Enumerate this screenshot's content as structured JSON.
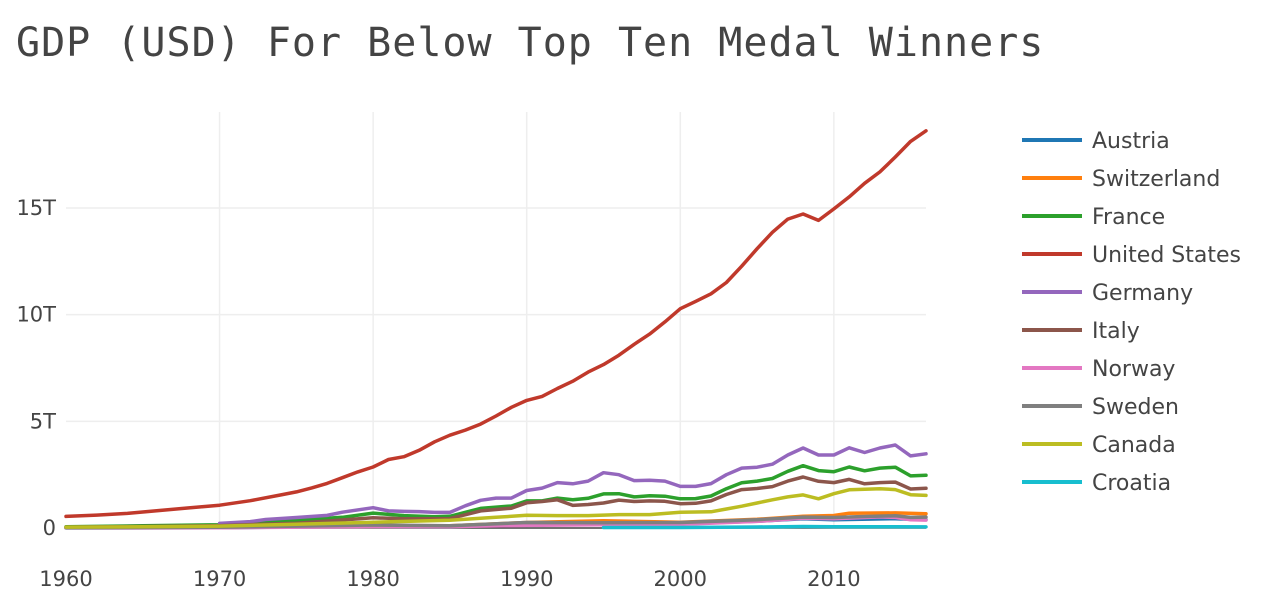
{
  "chart_data": {
    "type": "line",
    "title": "GDP (USD) For Below Top Ten Medal Winners",
    "xlim": [
      1960,
      2016
    ],
    "ylim": [
      0,
      19500000000000.0
    ],
    "x_ticks": [
      {
        "value": 1960,
        "label": "1960"
      },
      {
        "value": 1970,
        "label": "1970"
      },
      {
        "value": 1980,
        "label": "1980"
      },
      {
        "value": 1990,
        "label": "1990"
      },
      {
        "value": 2000,
        "label": "2000"
      },
      {
        "value": 2010,
        "label": "2010"
      }
    ],
    "y_ticks": [
      {
        "value": 0,
        "label": "0"
      },
      {
        "value": 5000000000000.0,
        "label": "5T"
      },
      {
        "value": 10000000000000.0,
        "label": "10T"
      },
      {
        "value": 15000000000000.0,
        "label": "15T"
      }
    ],
    "grid": true,
    "legend_position": "right",
    "series": [
      {
        "name": "Austria",
        "color": "#1f77b4",
        "points": [
          [
            1960,
            6600000000.0
          ],
          [
            1970,
            15000000000.0
          ],
          [
            1980,
            82000000000.0
          ],
          [
            1985,
            69000000000.0
          ],
          [
            1990,
            166000000000.0
          ],
          [
            1995,
            240000000000.0
          ],
          [
            2000,
            197000000000.0
          ],
          [
            2005,
            315000000000.0
          ],
          [
            2008,
            430000000000.0
          ],
          [
            2010,
            390000000000.0
          ],
          [
            2014,
            438000000000.0
          ],
          [
            2016,
            390000000000.0
          ]
        ]
      },
      {
        "name": "Switzerland",
        "color": "#ff7f0e",
        "points": [
          [
            1960,
            9500000000.0
          ],
          [
            1970,
            21000000000.0
          ],
          [
            1980,
            118000000000.0
          ],
          [
            1985,
            109000000000.0
          ],
          [
            1990,
            260000000000.0
          ],
          [
            1995,
            340000000000.0
          ],
          [
            2000,
            272000000000.0
          ],
          [
            2005,
            408000000000.0
          ],
          [
            2008,
            554000000000.0
          ],
          [
            2010,
            584000000000.0
          ],
          [
            2011,
            696000000000.0
          ],
          [
            2014,
            709000000000.0
          ],
          [
            2016,
            670000000000.0
          ]
        ]
      },
      {
        "name": "France",
        "color": "#2ca02c",
        "points": [
          [
            1960,
            62000000000.0
          ],
          [
            1965,
            101000000000.0
          ],
          [
            1970,
            148000000000.0
          ],
          [
            1975,
            360000000000.0
          ],
          [
            1978,
            500000000000.0
          ],
          [
            1980,
            700000000000.0
          ],
          [
            1982,
            580000000000.0
          ],
          [
            1984,
            530000000000.0
          ],
          [
            1985,
            550000000000.0
          ],
          [
            1987,
            920000000000.0
          ],
          [
            1989,
            1030000000000.0
          ],
          [
            1990,
            1270000000000.0
          ],
          [
            1991,
            1270000000000.0
          ],
          [
            1992,
            1400000000000.0
          ],
          [
            1993,
            1320000000000.0
          ],
          [
            1994,
            1390000000000.0
          ],
          [
            1995,
            1600000000000.0
          ],
          [
            1996,
            1610000000000.0
          ],
          [
            1997,
            1460000000000.0
          ],
          [
            1998,
            1510000000000.0
          ],
          [
            1999,
            1490000000000.0
          ],
          [
            2000,
            1370000000000.0
          ],
          [
            2001,
            1380000000000.0
          ],
          [
            2002,
            1500000000000.0
          ],
          [
            2003,
            1840000000000.0
          ],
          [
            2004,
            2120000000000.0
          ],
          [
            2005,
            2200000000000.0
          ],
          [
            2006,
            2320000000000.0
          ],
          [
            2007,
            2660000000000.0
          ],
          [
            2008,
            2920000000000.0
          ],
          [
            2009,
            2690000000000.0
          ],
          [
            2010,
            2640000000000.0
          ],
          [
            2011,
            2860000000000.0
          ],
          [
            2012,
            2680000000000.0
          ],
          [
            2013,
            2810000000000.0
          ],
          [
            2014,
            2850000000000.0
          ],
          [
            2015,
            2440000000000.0
          ],
          [
            2016,
            2470000000000.0
          ]
        ]
      },
      {
        "name": "United States",
        "color": "#c0392b",
        "points": [
          [
            1960,
            543000000000.0
          ],
          [
            1962,
            605000000000.0
          ],
          [
            1964,
            685000000000.0
          ],
          [
            1966,
            815000000000.0
          ],
          [
            1968,
            940000000000.0
          ],
          [
            1970,
            1070000000000.0
          ],
          [
            1972,
            1280000000000.0
          ],
          [
            1974,
            1550000000000.0
          ],
          [
            1975,
            1690000000000.0
          ],
          [
            1976,
            1880000000000.0
          ],
          [
            1977,
            2090000000000.0
          ],
          [
            1978,
            2360000000000.0
          ],
          [
            1979,
            2630000000000.0
          ],
          [
            1980,
            2860000000000.0
          ],
          [
            1981,
            3210000000000.0
          ],
          [
            1982,
            3340000000000.0
          ],
          [
            1983,
            3640000000000.0
          ],
          [
            1984,
            4040000000000.0
          ],
          [
            1985,
            4350000000000.0
          ],
          [
            1986,
            4590000000000.0
          ],
          [
            1987,
            4870000000000.0
          ],
          [
            1988,
            5250000000000.0
          ],
          [
            1989,
            5660000000000.0
          ],
          [
            1990,
            5980000000000.0
          ],
          [
            1991,
            6170000000000.0
          ],
          [
            1992,
            6540000000000.0
          ],
          [
            1993,
            6880000000000.0
          ],
          [
            1994,
            7310000000000.0
          ],
          [
            1995,
            7660000000000.0
          ],
          [
            1996,
            8100000000000.0
          ],
          [
            1997,
            8610000000000.0
          ],
          [
            1998,
            9090000000000.0
          ],
          [
            1999,
            9660000000000.0
          ],
          [
            2000,
            10280000000000.0
          ],
          [
            2001,
            10620000000000.0
          ],
          [
            2002,
            10980000000000.0
          ],
          [
            2003,
            11510000000000.0
          ],
          [
            2004,
            12270000000000.0
          ],
          [
            2005,
            13090000000000.0
          ],
          [
            2006,
            13860000000000.0
          ],
          [
            2007,
            14480000000000.0
          ],
          [
            2008,
            14720000000000.0
          ],
          [
            2009,
            14420000000000.0
          ],
          [
            2010,
            14960000000000.0
          ],
          [
            2011,
            15520000000000.0
          ],
          [
            2012,
            16160000000000.0
          ],
          [
            2013,
            16690000000000.0
          ],
          [
            2014,
            17390000000000.0
          ],
          [
            2015,
            18120000000000.0
          ],
          [
            2016,
            18620000000000.0
          ]
        ]
      },
      {
        "name": "Germany",
        "color": "#9467bd",
        "points": [
          [
            1970,
            215000000000.0
          ],
          [
            1972,
            300000000000.0
          ],
          [
            1973,
            398000000000.0
          ],
          [
            1975,
            490000000000.0
          ],
          [
            1977,
            590000000000.0
          ],
          [
            1978,
            740000000000.0
          ],
          [
            1980,
            950000000000.0
          ],
          [
            1981,
            800000000000.0
          ],
          [
            1982,
            780000000000.0
          ],
          [
            1983,
            770000000000.0
          ],
          [
            1984,
            730000000000.0
          ],
          [
            1985,
            730000000000.0
          ],
          [
            1986,
            1040000000000.0
          ],
          [
            1987,
            1300000000000.0
          ],
          [
            1988,
            1400000000000.0
          ],
          [
            1989,
            1400000000000.0
          ],
          [
            1990,
            1760000000000.0
          ],
          [
            1991,
            1870000000000.0
          ],
          [
            1992,
            2130000000000.0
          ],
          [
            1993,
            2070000000000.0
          ],
          [
            1994,
            2200000000000.0
          ],
          [
            1995,
            2590000000000.0
          ],
          [
            1996,
            2500000000000.0
          ],
          [
            1997,
            2220000000000.0
          ],
          [
            1998,
            2240000000000.0
          ],
          [
            1999,
            2200000000000.0
          ],
          [
            2000,
            1950000000000.0
          ],
          [
            2001,
            1950000000000.0
          ],
          [
            2002,
            2080000000000.0
          ],
          [
            2003,
            2500000000000.0
          ],
          [
            2004,
            2810000000000.0
          ],
          [
            2005,
            2850000000000.0
          ],
          [
            2006,
            2990000000000.0
          ],
          [
            2007,
            3420000000000.0
          ],
          [
            2008,
            3750000000000.0
          ],
          [
            2009,
            3420000000000.0
          ],
          [
            2010,
            3420000000000.0
          ],
          [
            2011,
            3760000000000.0
          ],
          [
            2012,
            3540000000000.0
          ],
          [
            2013,
            3750000000000.0
          ],
          [
            2014,
            3890000000000.0
          ],
          [
            2015,
            3380000000000.0
          ],
          [
            2016,
            3480000000000.0
          ]
        ]
      },
      {
        "name": "Italy",
        "color": "#8c564b",
        "points": [
          [
            1960,
            40000000000.0
          ],
          [
            1965,
            68000000000.0
          ],
          [
            1970,
            113000000000.0
          ],
          [
            1975,
            227000000000.0
          ],
          [
            1980,
            476000000000.0
          ],
          [
            1982,
            430000000000.0
          ],
          [
            1985,
            440000000000.0
          ],
          [
            1987,
            800000000000.0
          ],
          [
            1989,
            930000000000.0
          ],
          [
            1990,
            1180000000000.0
          ],
          [
            1991,
            1240000000000.0
          ],
          [
            1992,
            1320000000000.0
          ],
          [
            1993,
            1060000000000.0
          ],
          [
            1994,
            1100000000000.0
          ],
          [
            1995,
            1170000000000.0
          ],
          [
            1996,
            1310000000000.0
          ],
          [
            1997,
            1240000000000.0
          ],
          [
            1998,
            1270000000000.0
          ],
          [
            1999,
            1250000000000.0
          ],
          [
            2000,
            1140000000000.0
          ],
          [
            2001,
            1160000000000.0
          ],
          [
            2002,
            1270000000000.0
          ],
          [
            2003,
            1570000000000.0
          ],
          [
            2004,
            1800000000000.0
          ],
          [
            2005,
            1850000000000.0
          ],
          [
            2006,
            1940000000000.0
          ],
          [
            2007,
            2200000000000.0
          ],
          [
            2008,
            2390000000000.0
          ],
          [
            2009,
            2190000000000.0
          ],
          [
            2010,
            2130000000000.0
          ],
          [
            2011,
            2280000000000.0
          ],
          [
            2012,
            2070000000000.0
          ],
          [
            2013,
            2130000000000.0
          ],
          [
            2014,
            2150000000000.0
          ],
          [
            2015,
            1830000000000.0
          ],
          [
            2016,
            1860000000000.0
          ]
        ]
      },
      {
        "name": "Norway",
        "color": "#e377c2",
        "points": [
          [
            1960,
            5200000000.0
          ],
          [
            1970,
            13000000000.0
          ],
          [
            1980,
            64000000000.0
          ],
          [
            1985,
            65000000000.0
          ],
          [
            1990,
            120000000000.0
          ],
          [
            1995,
            150000000000.0
          ],
          [
            2000,
            170000000000.0
          ],
          [
            2005,
            310000000000.0
          ],
          [
            2008,
            460000000000.0
          ],
          [
            2010,
            430000000000.0
          ],
          [
            2013,
            520000000000.0
          ],
          [
            2014,
            498000000000.0
          ],
          [
            2015,
            386000000000.0
          ],
          [
            2016,
            371000000000.0
          ]
        ]
      },
      {
        "name": "Sweden",
        "color": "#7f7f7f",
        "points": [
          [
            1960,
            15000000000.0
          ],
          [
            1970,
            38000000000.0
          ],
          [
            1980,
            140000000000.0
          ],
          [
            1985,
            110000000000.0
          ],
          [
            1990,
            260000000000.0
          ],
          [
            1995,
            250000000000.0
          ],
          [
            2000,
            260000000000.0
          ],
          [
            2005,
            390000000000.0
          ],
          [
            2008,
            510000000000.0
          ],
          [
            2010,
            490000000000.0
          ],
          [
            2012,
            540000000000.0
          ],
          [
            2014,
            570000000000.0
          ],
          [
            2015,
            496000000000.0
          ],
          [
            2016,
            511000000000.0
          ]
        ]
      },
      {
        "name": "Canada",
        "color": "#bcbd22",
        "points": [
          [
            1960,
            41000000000.0
          ],
          [
            1965,
            56000000000.0
          ],
          [
            1970,
            87000000000.0
          ],
          [
            1975,
            174000000000.0
          ],
          [
            1980,
            274000000000.0
          ],
          [
            1985,
            365000000000.0
          ],
          [
            1988,
            500000000000.0
          ],
          [
            1990,
            594000000000.0
          ],
          [
            1992,
            580000000000.0
          ],
          [
            1994,
            580000000000.0
          ],
          [
            1996,
            630000000000.0
          ],
          [
            1998,
            630000000000.0
          ],
          [
            2000,
            740000000000.0
          ],
          [
            2002,
            760000000000.0
          ],
          [
            2003,
            890000000000.0
          ],
          [
            2004,
            1020000000000.0
          ],
          [
            2005,
            1170000000000.0
          ],
          [
            2006,
            1320000000000.0
          ],
          [
            2007,
            1460000000000.0
          ],
          [
            2008,
            1550000000000.0
          ],
          [
            2009,
            1370000000000.0
          ],
          [
            2010,
            1610000000000.0
          ],
          [
            2011,
            1790000000000.0
          ],
          [
            2012,
            1820000000000.0
          ],
          [
            2013,
            1840000000000.0
          ],
          [
            2014,
            1800000000000.0
          ],
          [
            2015,
            1560000000000.0
          ],
          [
            2016,
            1530000000000.0
          ]
        ]
      },
      {
        "name": "Croatia",
        "color": "#17becf",
        "points": [
          [
            1995,
            23000000000.0
          ],
          [
            2000,
            22000000000.0
          ],
          [
            2005,
            45000000000.0
          ],
          [
            2008,
            70000000000.0
          ],
          [
            2010,
            60000000000.0
          ],
          [
            2014,
            57000000000.0
          ],
          [
            2016,
            51000000000.0
          ]
        ]
      }
    ]
  }
}
